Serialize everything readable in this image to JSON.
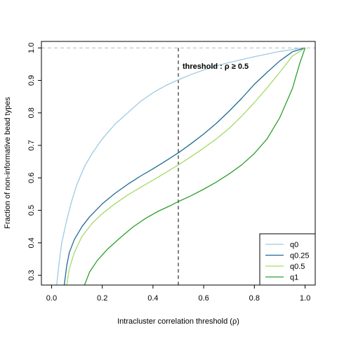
{
  "chart_data": {
    "type": "line",
    "title": "",
    "xlabel": "Intracluster correlation threshold (ρ)",
    "ylabel": "Fraction of non-informative bead types",
    "xlim": [
      -0.04,
      1.04
    ],
    "ylim": [
      0.27,
      1.02
    ],
    "xticks": [
      0.0,
      0.2,
      0.4,
      0.6,
      0.8,
      1.0
    ],
    "xtick_labels": [
      "0.0",
      "0.2",
      "0.4",
      "0.6",
      "0.8",
      "1.0"
    ],
    "yticks": [
      0.3,
      0.4,
      0.5,
      0.6,
      0.7,
      0.8,
      0.9,
      1.0
    ],
    "ytick_labels": [
      "0.3",
      "0.4",
      "0.5",
      "0.6",
      "0.7",
      "0.8",
      "0.9",
      "1.0"
    ],
    "grid": false,
    "legend_position": "bottom-right",
    "reference_hline": {
      "y": 1.0,
      "color": "#a9b9c9"
    },
    "threshold_vline": {
      "x": 0.5,
      "label": "threshold : ρ ≥ 0.5"
    },
    "series": [
      {
        "name": "q0",
        "color": "#9ecae1",
        "points": [
          [
            0.02,
            0.27
          ],
          [
            0.03,
            0.34
          ],
          [
            0.04,
            0.4
          ],
          [
            0.06,
            0.47
          ],
          [
            0.08,
            0.53
          ],
          [
            0.1,
            0.58
          ],
          [
            0.13,
            0.635
          ],
          [
            0.16,
            0.675
          ],
          [
            0.2,
            0.72
          ],
          [
            0.25,
            0.765
          ],
          [
            0.3,
            0.8
          ],
          [
            0.35,
            0.835
          ],
          [
            0.4,
            0.862
          ],
          [
            0.45,
            0.884
          ],
          [
            0.5,
            0.902
          ],
          [
            0.55,
            0.918
          ],
          [
            0.6,
            0.932
          ],
          [
            0.65,
            0.945
          ],
          [
            0.7,
            0.955
          ],
          [
            0.75,
            0.964
          ],
          [
            0.8,
            0.973
          ],
          [
            0.85,
            0.981
          ],
          [
            0.9,
            0.989
          ],
          [
            0.95,
            0.995
          ],
          [
            0.98,
            0.999
          ],
          [
            1.0,
            1.0
          ]
        ]
      },
      {
        "name": "q0.25",
        "color": "#1f6b94",
        "points": [
          [
            0.05,
            0.27
          ],
          [
            0.06,
            0.33
          ],
          [
            0.07,
            0.37
          ],
          [
            0.09,
            0.41
          ],
          [
            0.12,
            0.45
          ],
          [
            0.15,
            0.48
          ],
          [
            0.2,
            0.52
          ],
          [
            0.25,
            0.552
          ],
          [
            0.3,
            0.58
          ],
          [
            0.35,
            0.605
          ],
          [
            0.4,
            0.628
          ],
          [
            0.45,
            0.652
          ],
          [
            0.5,
            0.677
          ],
          [
            0.55,
            0.705
          ],
          [
            0.6,
            0.735
          ],
          [
            0.65,
            0.768
          ],
          [
            0.7,
            0.805
          ],
          [
            0.75,
            0.845
          ],
          [
            0.8,
            0.888
          ],
          [
            0.85,
            0.925
          ],
          [
            0.9,
            0.96
          ],
          [
            0.95,
            0.988
          ],
          [
            1.0,
            1.0
          ]
        ]
      },
      {
        "name": "q0.5",
        "color": "#a6d96a",
        "points": [
          [
            0.06,
            0.27
          ],
          [
            0.07,
            0.32
          ],
          [
            0.09,
            0.37
          ],
          [
            0.12,
            0.42
          ],
          [
            0.16,
            0.46
          ],
          [
            0.2,
            0.49
          ],
          [
            0.25,
            0.52
          ],
          [
            0.3,
            0.547
          ],
          [
            0.35,
            0.57
          ],
          [
            0.4,
            0.593
          ],
          [
            0.45,
            0.616
          ],
          [
            0.5,
            0.64
          ],
          [
            0.55,
            0.665
          ],
          [
            0.6,
            0.692
          ],
          [
            0.65,
            0.72
          ],
          [
            0.7,
            0.752
          ],
          [
            0.75,
            0.79
          ],
          [
            0.8,
            0.832
          ],
          [
            0.85,
            0.877
          ],
          [
            0.9,
            0.925
          ],
          [
            0.95,
            0.975
          ],
          [
            1.0,
            1.0
          ]
        ]
      },
      {
        "name": "q1",
        "color": "#2ca02c",
        "points": [
          [
            0.13,
            0.27
          ],
          [
            0.15,
            0.31
          ],
          [
            0.18,
            0.345
          ],
          [
            0.22,
            0.38
          ],
          [
            0.27,
            0.415
          ],
          [
            0.32,
            0.448
          ],
          [
            0.37,
            0.475
          ],
          [
            0.42,
            0.497
          ],
          [
            0.47,
            0.515
          ],
          [
            0.5,
            0.527
          ],
          [
            0.55,
            0.545
          ],
          [
            0.6,
            0.565
          ],
          [
            0.65,
            0.587
          ],
          [
            0.7,
            0.612
          ],
          [
            0.75,
            0.64
          ],
          [
            0.8,
            0.675
          ],
          [
            0.85,
            0.72
          ],
          [
            0.9,
            0.785
          ],
          [
            0.95,
            0.875
          ],
          [
            0.98,
            0.955
          ],
          [
            1.0,
            1.0
          ]
        ]
      }
    ]
  }
}
